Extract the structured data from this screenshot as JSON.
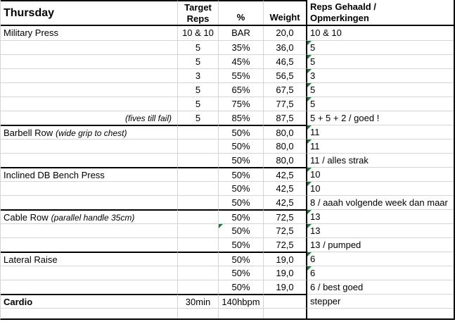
{
  "sheet": {
    "header": {
      "day": "Thursday",
      "target_reps": "Target\nReps",
      "percent": "%",
      "weight": "Weight",
      "result": "Reps Gehaald /\nOpmerkingen"
    },
    "colors": {
      "flag_green": "#1e7b3c",
      "thick_border": "#000000",
      "gridline": "#d4d4d4",
      "text": "#000000",
      "background": "#ffffff"
    },
    "icons": {
      "flag": "number-stored-as-text-corner-triangle"
    },
    "rows": [
      {
        "exercise": "Military Press",
        "note": "",
        "note_align": "inline",
        "target": "10 & 10",
        "pct": "BAR",
        "weight": "20,0",
        "result": "10 & 10",
        "flag_pct": false,
        "flag_result": false,
        "group_start": false,
        "bold": false,
        "empty": false
      },
      {
        "exercise": "",
        "note": "",
        "note_align": "inline",
        "target": "5",
        "pct": "35%",
        "weight": "36,0",
        "result": "5",
        "flag_pct": false,
        "flag_result": true,
        "group_start": false,
        "bold": false,
        "empty": false
      },
      {
        "exercise": "",
        "note": "",
        "note_align": "inline",
        "target": "5",
        "pct": "45%",
        "weight": "46,5",
        "result": "5",
        "flag_pct": false,
        "flag_result": true,
        "group_start": false,
        "bold": false,
        "empty": false
      },
      {
        "exercise": "",
        "note": "",
        "note_align": "inline",
        "target": "3",
        "pct": "55%",
        "weight": "56,5",
        "result": "3",
        "flag_pct": false,
        "flag_result": true,
        "group_start": false,
        "bold": false,
        "empty": false
      },
      {
        "exercise": "",
        "note": "",
        "note_align": "inline",
        "target": "5",
        "pct": "65%",
        "weight": "67,5",
        "result": "5",
        "flag_pct": false,
        "flag_result": true,
        "group_start": false,
        "bold": false,
        "empty": false
      },
      {
        "exercise": "",
        "note": "",
        "note_align": "inline",
        "target": "5",
        "pct": "75%",
        "weight": "77,5",
        "result": "5",
        "flag_pct": false,
        "flag_result": true,
        "group_start": false,
        "bold": false,
        "empty": false
      },
      {
        "exercise": "",
        "note": "(fives till fail)",
        "note_align": "right",
        "target": "5",
        "pct": "85%",
        "weight": "87,5",
        "result": "5 + 5 + 2 / goed !",
        "flag_pct": false,
        "flag_result": false,
        "group_start": false,
        "bold": false,
        "empty": false
      },
      {
        "exercise": "Barbell Row",
        "note": "(wide grip to chest)",
        "note_align": "inline",
        "target": "",
        "pct": "50%",
        "weight": "80,0",
        "result": "11",
        "flag_pct": false,
        "flag_result": true,
        "group_start": true,
        "bold": false,
        "empty": false
      },
      {
        "exercise": "",
        "note": "",
        "note_align": "inline",
        "target": "",
        "pct": "50%",
        "weight": "80,0",
        "result": "11",
        "flag_pct": false,
        "flag_result": true,
        "group_start": false,
        "bold": false,
        "empty": false
      },
      {
        "exercise": "",
        "note": "",
        "note_align": "inline",
        "target": "",
        "pct": "50%",
        "weight": "80,0",
        "result": "11 / alles strak",
        "flag_pct": false,
        "flag_result": false,
        "group_start": false,
        "bold": false,
        "empty": false
      },
      {
        "exercise": "Inclined DB Bench Press",
        "note": "",
        "note_align": "inline",
        "target": "",
        "pct": "50%",
        "weight": "42,5",
        "result": "10",
        "flag_pct": false,
        "flag_result": true,
        "group_start": true,
        "bold": false,
        "empty": false
      },
      {
        "exercise": "",
        "note": "",
        "note_align": "inline",
        "target": "",
        "pct": "50%",
        "weight": "42,5",
        "result": "10",
        "flag_pct": false,
        "flag_result": true,
        "group_start": false,
        "bold": false,
        "empty": false
      },
      {
        "exercise": "",
        "note": "",
        "note_align": "inline",
        "target": "",
        "pct": "50%",
        "weight": "42,5",
        "result": "8 / aaah volgende week dan maar",
        "flag_pct": false,
        "flag_result": false,
        "group_start": false,
        "bold": false,
        "empty": false
      },
      {
        "exercise": "Cable Row",
        "note": "(parallel handle 35cm)",
        "note_align": "inline",
        "target": "",
        "pct": "50%",
        "weight": "72,5",
        "result": "13",
        "flag_pct": false,
        "flag_result": true,
        "group_start": true,
        "bold": false,
        "empty": false
      },
      {
        "exercise": "",
        "note": "",
        "note_align": "inline",
        "target": "",
        "pct": "50%",
        "weight": "72,5",
        "result": "13",
        "flag_pct": true,
        "flag_result": true,
        "group_start": false,
        "bold": false,
        "empty": false
      },
      {
        "exercise": "",
        "note": "",
        "note_align": "inline",
        "target": "",
        "pct": "50%",
        "weight": "72,5",
        "result": "13 / pumped",
        "flag_pct": false,
        "flag_result": false,
        "group_start": false,
        "bold": false,
        "empty": false
      },
      {
        "exercise": "Lateral Raise",
        "note": "",
        "note_align": "inline",
        "target": "",
        "pct": "50%",
        "weight": "19,0",
        "result": "6",
        "flag_pct": false,
        "flag_result": true,
        "group_start": true,
        "bold": false,
        "empty": false
      },
      {
        "exercise": "",
        "note": "",
        "note_align": "inline",
        "target": "",
        "pct": "50%",
        "weight": "19,0",
        "result": "6",
        "flag_pct": false,
        "flag_result": true,
        "group_start": false,
        "bold": false,
        "empty": false
      },
      {
        "exercise": "",
        "note": "",
        "note_align": "inline",
        "target": "",
        "pct": "50%",
        "weight": "19,0",
        "result": "6 / best goed",
        "flag_pct": false,
        "flag_result": false,
        "group_start": false,
        "bold": false,
        "empty": false
      },
      {
        "exercise": "Cardio",
        "note": "",
        "note_align": "inline",
        "target": "30min",
        "pct": "140hbpm",
        "weight": "",
        "result": "stepper",
        "flag_pct": false,
        "flag_result": false,
        "group_start": true,
        "bold": true,
        "empty": false
      },
      {
        "exercise": "",
        "note": "",
        "note_align": "inline",
        "target": "",
        "pct": "",
        "weight": "",
        "result": "",
        "flag_pct": false,
        "flag_result": false,
        "group_start": false,
        "bold": false,
        "empty": true
      }
    ]
  }
}
